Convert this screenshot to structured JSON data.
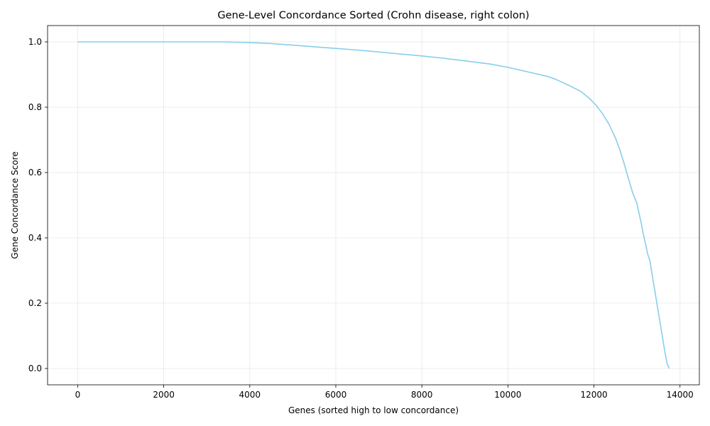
{
  "chart_data": {
    "type": "line",
    "title": "Gene-Level Concordance Sorted (Crohn disease, right colon)",
    "xlabel": "Genes (sorted high to low concordance)",
    "ylabel": "Gene Concordance Score",
    "xlim": [
      -700,
      14450
    ],
    "ylim": [
      -0.05,
      1.05
    ],
    "xticks": [
      0,
      2000,
      4000,
      6000,
      8000,
      10000,
      12000,
      14000
    ],
    "yticks": [
      0.0,
      0.2,
      0.4,
      0.6,
      0.8,
      1.0
    ],
    "xtick_labels": [
      "0",
      "2000",
      "4000",
      "6000",
      "8000",
      "10000",
      "12000",
      "14000"
    ],
    "ytick_labels": [
      "0.0",
      "0.2",
      "0.4",
      "0.6",
      "0.8",
      "1.0"
    ],
    "grid": true,
    "line_color": "#87ceeb",
    "series": [
      {
        "x": [
          0,
          1000,
          2000,
          3000,
          3400,
          4000,
          4500,
          5000,
          5500,
          6000,
          6500,
          7000,
          7500,
          8000,
          8500,
          9000,
          9600,
          10000,
          10500,
          10900,
          11100,
          11400,
          11700,
          11900,
          12050,
          12200,
          12350,
          12500,
          12600,
          12700,
          12800,
          12900,
          13000,
          13050,
          13100,
          13150,
          13200,
          13250,
          13300,
          13350,
          13400,
          13450,
          13500,
          13550,
          13600,
          13650,
          13700,
          13750
        ],
        "y": [
          1.0,
          1.0,
          1.0,
          1.0,
          1.0,
          0.998,
          0.995,
          0.99,
          0.985,
          0.98,
          0.975,
          0.969,
          0.963,
          0.957,
          0.95,
          0.942,
          0.932,
          0.922,
          0.907,
          0.895,
          0.886,
          0.868,
          0.848,
          0.826,
          0.806,
          0.78,
          0.748,
          0.706,
          0.67,
          0.628,
          0.582,
          0.538,
          0.505,
          0.474,
          0.444,
          0.41,
          0.38,
          0.35,
          0.33,
          0.29,
          0.25,
          0.21,
          0.17,
          0.13,
          0.09,
          0.05,
          0.015,
          0.0
        ]
      }
    ]
  }
}
